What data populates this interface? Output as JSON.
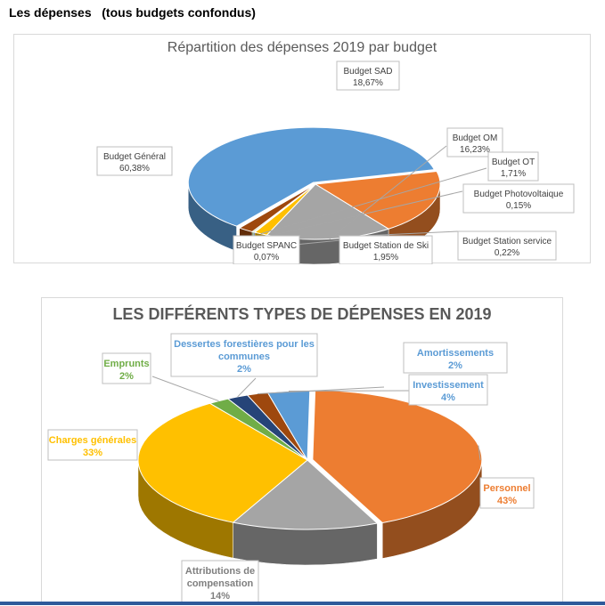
{
  "page": {
    "heading": "Les dépenses   (tous budgets confondus)"
  },
  "chart_data": [
    {
      "type": "pie",
      "title": "Répartition des dépenses 2019 par budget",
      "slices": [
        {
          "name": "Budget Général",
          "label": "60,38%",
          "value": 60.38,
          "color": "#5b9bd5"
        },
        {
          "name": "Budget SAD",
          "label": "18,67%",
          "value": 18.67,
          "color": "#ed7d31"
        },
        {
          "name": "Budget OM",
          "label": "16,23%",
          "value": 16.23,
          "color": "#a5a5a5"
        },
        {
          "name": "Budget OT",
          "label": "1,71%",
          "value": 1.71,
          "color": "#ffc000"
        },
        {
          "name": "Budget Photovoltaique",
          "label": "0,15%",
          "value": 0.15,
          "color": "#4472c4"
        },
        {
          "name": "Budget Station service",
          "label": "0,22%",
          "value": 0.22,
          "color": "#70ad47"
        },
        {
          "name": "Budget Station de Ski",
          "label": "1,95%",
          "value": 1.95,
          "color": "#9e480e"
        },
        {
          "name": "Budget SPANC",
          "label": "0,07%",
          "value": 0.07,
          "color": "#264478"
        }
      ]
    },
    {
      "type": "pie",
      "title": "LES DIFFÉRENTS TYPES DE DÉPENSES EN 2019",
      "slices": [
        {
          "name": "Amortissements",
          "label": "2%",
          "value": 2,
          "color": "#9e480e"
        },
        {
          "name": "Investissement",
          "label": "4%",
          "value": 4,
          "color": "#5b9bd5"
        },
        {
          "name": "Personnel",
          "label": "43%",
          "value": 43,
          "color": "#ed7d31"
        },
        {
          "name": "Attributions de compensation",
          "label": "14%",
          "value": 14,
          "color": "#a5a5a5"
        },
        {
          "name": "Charges générales",
          "label": "33%",
          "value": 33,
          "color": "#ffc000"
        },
        {
          "name": "Emprunts",
          "label": "2%",
          "value": 2,
          "color": "#70ad47"
        },
        {
          "name": "Dessertes forestières pour les communes",
          "label": "2%",
          "value": 2,
          "color": "#264478"
        }
      ]
    }
  ]
}
